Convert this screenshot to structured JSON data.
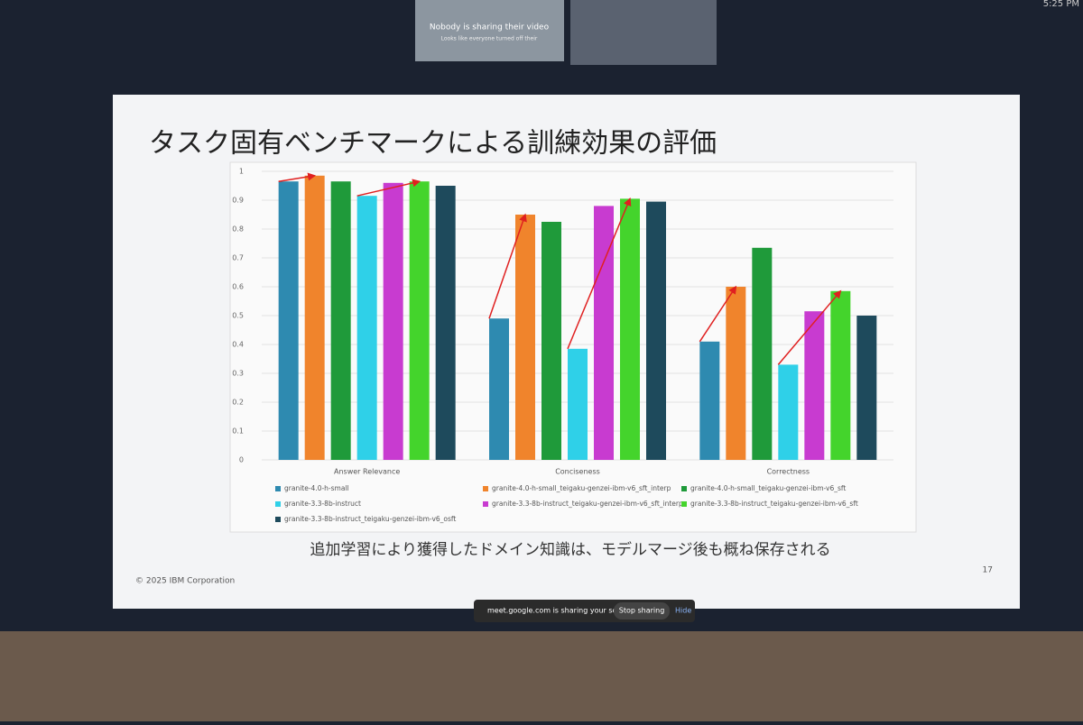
{
  "meet": {
    "time": "5:25 PM",
    "tile_title": "Nobody is sharing their video",
    "tile_subtitle": "Looks like everyone turned off their",
    "share_notice": "meet.google.com is sharing your screen.",
    "stop_button": "Stop sharing",
    "hide_button": "Hide"
  },
  "slide": {
    "caption": "追加学習により獲得したドメイン知識は、モデルマージ後も概ね保存される",
    "copyright": "© 2025 IBM Corporation",
    "page_number": "17"
  },
  "chart_data": {
    "type": "bar",
    "title": "タスク固有ベンチマークによる訓練効果の評価",
    "categories": [
      "Answer Relevance",
      "Conciseness",
      "Correctness"
    ],
    "series": [
      {
        "name": "granite-4.0-h-small",
        "color": "#2e8ab0",
        "values": [
          0.965,
          0.49,
          0.41
        ]
      },
      {
        "name": "granite-4.0-h-small_teigaku-genzei-ibm-v6_sft_interp",
        "color": "#f0842c",
        "values": [
          0.985,
          0.85,
          0.6
        ]
      },
      {
        "name": "granite-4.0-h-small_teigaku-genzei-ibm-v6_sft",
        "color": "#1f9a3a",
        "values": [
          0.965,
          0.825,
          0.735
        ]
      },
      {
        "name": "granite-3.3-8b-instruct",
        "color": "#2fd0e8",
        "values": [
          0.915,
          0.385,
          0.33
        ]
      },
      {
        "name": "granite-3.3-8b-instruct_teigaku-genzei-ibm-v6_sft_interp",
        "color": "#c83bd0",
        "values": [
          0.96,
          0.88,
          0.515
        ]
      },
      {
        "name": "granite-3.3-8b-instruct_teigaku-genzei-ibm-v6_sft",
        "color": "#44d42c",
        "values": [
          0.965,
          0.905,
          0.585
        ]
      },
      {
        "name": "granite-3.3-8b-instruct_teigaku-genzei-ibm-v6_osft",
        "color": "#1e4a5c",
        "values": [
          0.95,
          0.895,
          0.5
        ]
      }
    ],
    "ylim": [
      0,
      1
    ],
    "yticks": [
      0,
      0.1,
      0.2,
      0.3,
      0.4,
      0.5,
      0.6,
      0.7,
      0.8,
      0.9,
      1
    ],
    "grid": true,
    "legend": "bottom"
  }
}
